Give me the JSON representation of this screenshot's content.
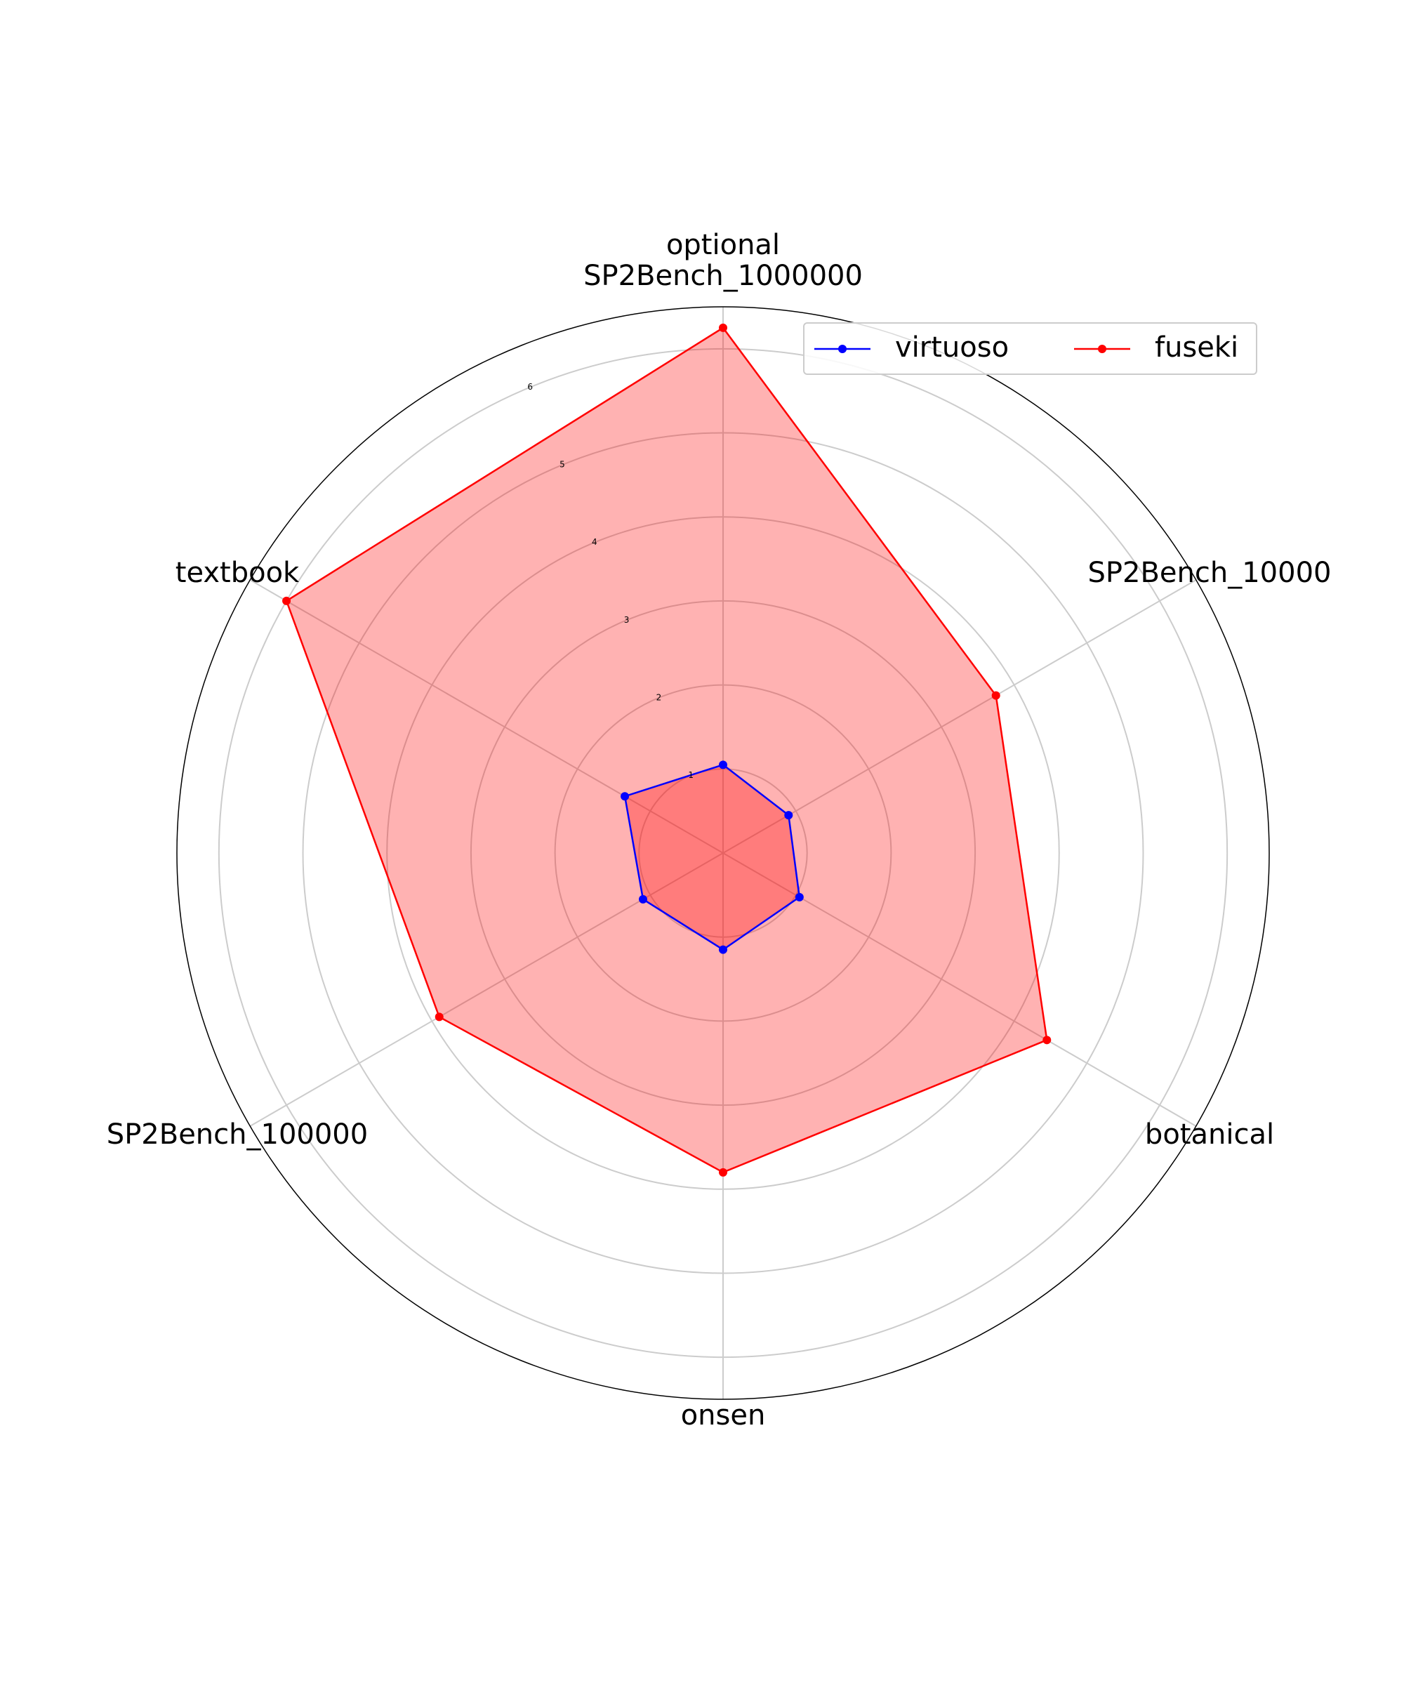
{
  "chart_data": {
    "type": "radar",
    "axes": [
      "optional\nSP2Bench_1000000",
      "SP2Bench_10000",
      "botanical",
      "onsen",
      "SP2Bench_100000",
      "textbook"
    ],
    "rmax": 6.5,
    "ticks": [
      "1",
      "2",
      "3",
      "4",
      "5",
      "6"
    ],
    "tick_values": [
      1,
      2,
      3,
      4,
      5,
      6
    ],
    "grid": true,
    "legend_position": "top-right",
    "series": [
      {
        "name": "virtuoso",
        "color": "#0000ff",
        "fill": "#ff0000",
        "values": [
          1.05,
          0.9,
          1.05,
          1.15,
          1.1,
          1.35
        ]
      },
      {
        "name": "fuseki",
        "color": "#ff0000",
        "fill": "#ff0000",
        "values": [
          6.25,
          3.75,
          4.45,
          3.8,
          3.9,
          6.0
        ]
      }
    ]
  }
}
